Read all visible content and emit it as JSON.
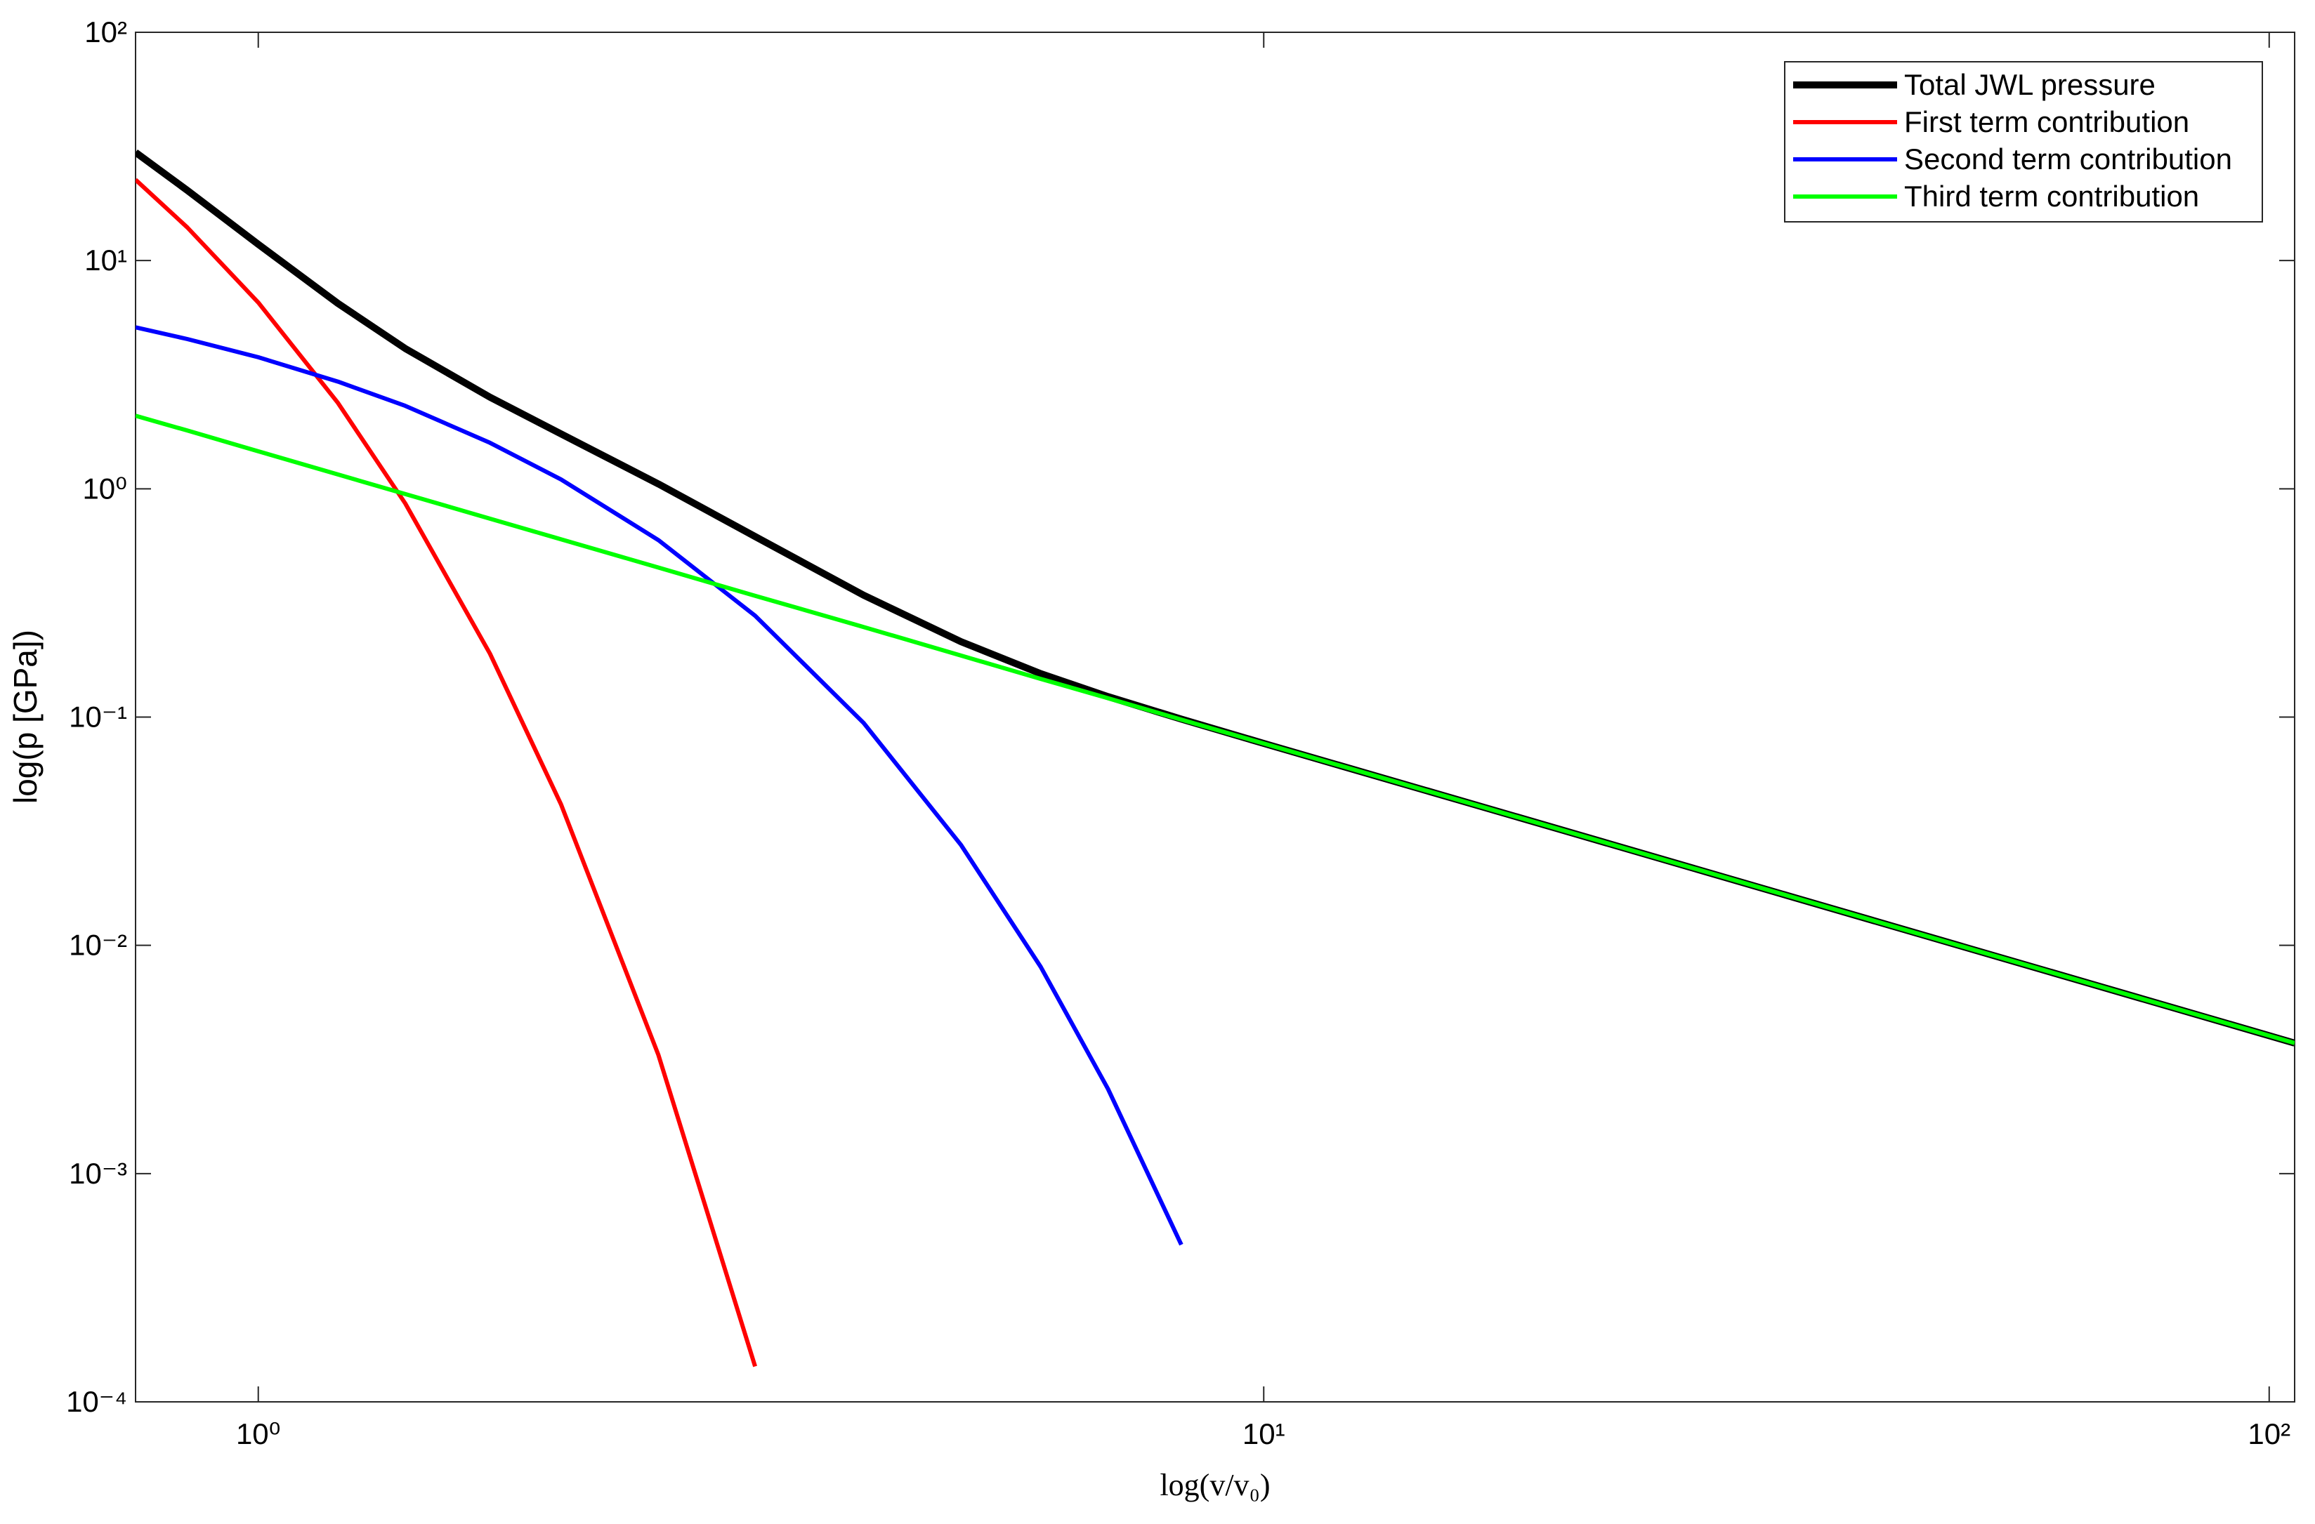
{
  "chart_data": {
    "type": "line",
    "xlabel": "log(v/v₀)",
    "ylabel": "log(p [GPa])",
    "x": [
      0.755,
      0.85,
      1,
      1.2,
      1.4,
      1.7,
      2,
      2.5,
      3.12,
      4,
      5,
      6,
      7,
      8.28,
      10,
      20,
      50,
      106
    ],
    "series": [
      {
        "name": "Total JWL pressure",
        "color": "#000000",
        "width": 10,
        "values": [
          29.79,
          20.3,
          11.78,
          6.49,
          4.12,
          2.52,
          1.74,
          1.05,
          0.618,
          0.342,
          0.214,
          0.155,
          0.123,
          0.098,
          0.0767,
          0.0316,
          0.00977,
          0.00373
        ]
      },
      {
        "name": "First term contribution",
        "color": "#ff0000",
        "width": 6,
        "values": [
          22.6,
          13.97,
          6.55,
          2.38,
          0.864,
          0.1895,
          0.0415,
          0.00331,
          0.000143,
          null,
          null,
          null,
          null,
          null,
          null,
          null,
          null,
          null
        ]
      },
      {
        "name": "Second term contribution",
        "color": "#0000ff",
        "width": 6,
        "values": [
          5.1,
          4.53,
          3.77,
          2.95,
          2.31,
          1.59,
          1.1,
          0.596,
          0.278,
          0.0942,
          0.0275,
          0.00805,
          0.00235,
          0.000488,
          null,
          null,
          null,
          null
        ]
      },
      {
        "name": "Third term contribution",
        "color": "#00ff00",
        "width": 6,
        "values": [
          2.09,
          1.8,
          1.46,
          1.156,
          0.949,
          0.74,
          0.601,
          0.452,
          0.34,
          0.248,
          0.186,
          0.147,
          0.121,
          0.0975,
          0.0766,
          0.0316,
          0.00977,
          0.00373
        ]
      }
    ],
    "xscale": "log",
    "yscale": "log",
    "xlim": [
      0.755,
      106
    ],
    "ylim": [
      0.0001,
      100
    ],
    "xticks": [
      {
        "value": 1,
        "label": "10⁰"
      },
      {
        "value": 10,
        "label": "10¹"
      },
      {
        "value": 100,
        "label": "10²"
      }
    ],
    "yticks": [
      {
        "value": 0.0001,
        "label": "10⁻⁴"
      },
      {
        "value": 0.001,
        "label": "10⁻³"
      },
      {
        "value": 0.01,
        "label": "10⁻²"
      },
      {
        "value": 0.1,
        "label": "10⁻¹"
      },
      {
        "value": 1,
        "label": "10⁰"
      },
      {
        "value": 10,
        "label": "10¹"
      },
      {
        "value": 100,
        "label": "10²"
      }
    ],
    "grid": false,
    "legend": "upper right"
  }
}
